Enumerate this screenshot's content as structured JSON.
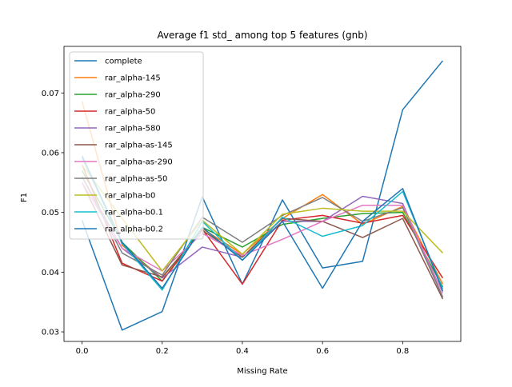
{
  "chart_data": {
    "type": "line",
    "title": "Average f1 std_ among top 5 features (gnb)",
    "xlabel": "Missing Rate",
    "ylabel": "F1",
    "xlim": [
      -0.045,
      0.945
    ],
    "ylim": [
      0.0284,
      0.0778
    ],
    "xticks": [
      0.0,
      0.2,
      0.4,
      0.6,
      0.8
    ],
    "xtick_labels": [
      "0.0",
      "0.2",
      "0.4",
      "0.6",
      "0.8"
    ],
    "yticks": [
      0.03,
      0.04,
      0.05,
      0.06,
      0.07
    ],
    "ytick_labels": [
      "0.03",
      "0.04",
      "0.05",
      "0.06",
      "0.07"
    ],
    "grid": false,
    "legend_position": "upper-left",
    "x": [
      0.0,
      0.1,
      0.2,
      0.3,
      0.4,
      0.5,
      0.6,
      0.7,
      0.8,
      0.9
    ],
    "series": [
      {
        "name": "complete",
        "color": "#1f77b4",
        "values": [
          0.0487,
          0.0303,
          0.0334,
          0.0526,
          0.038,
          0.0521,
          0.0407,
          0.0418,
          0.0672,
          0.0754
        ]
      },
      {
        "name": "rar_alpha-145",
        "color": "#ff7f0e",
        "values": [
          0.0686,
          0.0445,
          0.039,
          0.0473,
          0.043,
          0.049,
          0.053,
          0.048,
          0.051,
          0.038
        ]
      },
      {
        "name": "rar_alpha-290",
        "color": "#2ca02c",
        "values": [
          0.057,
          0.045,
          0.0385,
          0.0475,
          0.0442,
          0.048,
          0.049,
          0.0498,
          0.05,
          0.0375
        ]
      },
      {
        "name": "rar_alpha-50",
        "color": "#d62728",
        "values": [
          0.058,
          0.0415,
          0.0385,
          0.0472,
          0.038,
          0.0487,
          0.0495,
          0.0482,
          0.0495,
          0.039
        ]
      },
      {
        "name": "rar_alpha-580",
        "color": "#9467bd",
        "values": [
          0.056,
          0.044,
          0.039,
          0.0442,
          0.0425,
          0.0485,
          0.0485,
          0.0527,
          0.0515,
          0.0358
        ]
      },
      {
        "name": "rar_alpha-as-145",
        "color": "#8c564b",
        "values": [
          0.055,
          0.0412,
          0.0392,
          0.047,
          0.0425,
          0.049,
          0.0485,
          0.0458,
          0.049,
          0.0355
        ]
      },
      {
        "name": "rar_alpha-as-290",
        "color": "#e377c2",
        "values": [
          0.055,
          0.044,
          0.0402,
          0.0465,
          0.0428,
          0.0455,
          0.0485,
          0.0512,
          0.0512,
          0.0365
        ]
      },
      {
        "name": "rar_alpha-as-50",
        "color": "#7f7f7f",
        "values": [
          0.056,
          0.0432,
          0.0395,
          0.0492,
          0.045,
          0.0495,
          0.0525,
          0.0485,
          0.0508,
          0.0358
        ]
      },
      {
        "name": "rar_alpha-b0",
        "color": "#bcbd22",
        "values": [
          0.058,
          0.049,
          0.0402,
          0.0487,
          0.043,
          0.0497,
          0.0507,
          0.0502,
          0.0502,
          0.0432
        ]
      },
      {
        "name": "rar_alpha-b0.1",
        "color": "#17becf",
        "values": [
          0.0592,
          0.0448,
          0.037,
          0.0485,
          0.042,
          0.0492,
          0.046,
          0.0478,
          0.0535,
          0.0372
        ]
      },
      {
        "name": "rar_alpha-b0.2",
        "color": "#1f77b4",
        "values": [
          0.0595,
          0.045,
          0.0373,
          0.0475,
          0.042,
          0.0485,
          0.0373,
          0.0485,
          0.054,
          0.0368
        ]
      }
    ]
  }
}
